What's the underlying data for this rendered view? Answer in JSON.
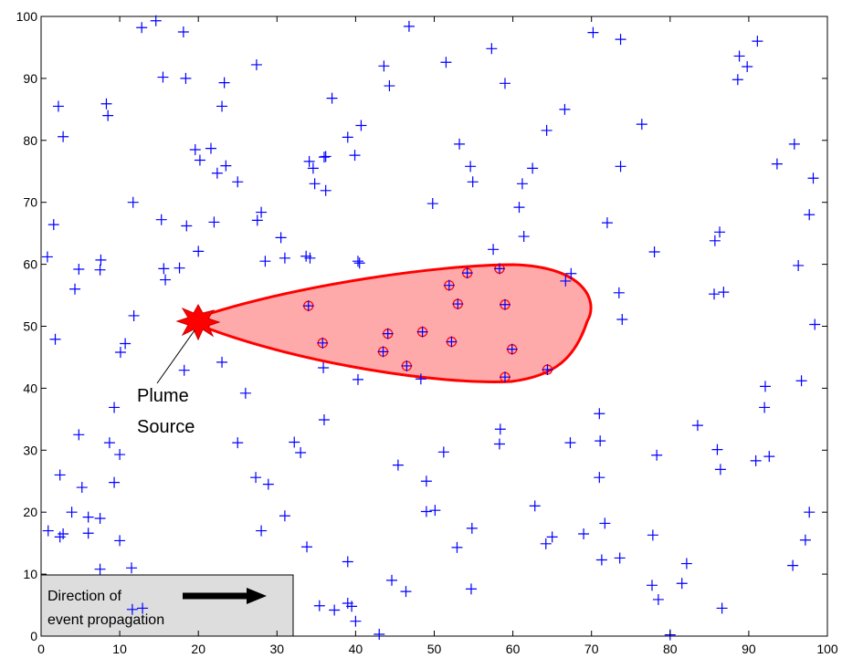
{
  "chart_data": {
    "type": "scatter",
    "xlim": [
      0,
      100
    ],
    "ylim": [
      0,
      100
    ],
    "xticks": [
      0,
      10,
      20,
      30,
      40,
      50,
      60,
      70,
      80,
      90,
      100
    ],
    "yticks": [
      0,
      10,
      20,
      30,
      40,
      50,
      60,
      70,
      80,
      90,
      100
    ],
    "annotations": {
      "plume_source": [
        "Plume",
        "Source"
      ],
      "propagation": [
        "Direction of",
        "event propagation"
      ]
    },
    "series": [
      {
        "color": "#0000ff",
        "marker": "plus",
        "x": [
          12.8,
          14.6,
          18.1,
          15.5,
          18.4,
          27.4,
          23.3,
          23.0,
          2.2,
          8.3,
          8.5,
          2.8,
          19.6,
          20.2,
          21.6,
          22.4,
          23.5,
          25.0,
          11.7,
          1.6,
          15.3,
          18.5,
          22.0,
          27.5,
          28.0,
          0.8,
          4.8,
          7.6,
          7.5,
          4.3,
          15.6,
          15.8,
          17.6,
          20.0,
          28.5,
          30.5,
          31.0,
          33.7,
          34.2,
          40.3,
          40.5,
          11.8,
          1.8,
          10.7,
          10.1,
          18.2,
          23.0,
          9.3,
          26.0,
          10.0,
          8.7,
          4.8,
          2.4,
          5.2,
          25.0,
          27.3,
          28.9,
          3.9,
          6.0,
          7.5,
          9.3,
          0.9,
          2.4,
          2.8,
          6.0,
          10.0,
          7.5,
          11.5,
          11.6,
          12.9,
          28.0,
          31.0,
          32.2,
          33.0,
          33.8,
          35.4,
          37.3,
          39.0,
          39.5,
          40.0,
          39.0,
          43.0,
          44.6,
          46.4,
          45.4,
          49.0,
          49.0,
          50.1,
          51.2,
          52.9,
          54.8,
          54.7,
          36.0,
          35.9,
          40.3,
          48.3,
          58.4,
          58.3,
          62.8,
          64.2,
          65.0,
          67.3,
          69.0,
          71.0,
          71.1,
          71.0,
          71.7,
          71.3,
          73.6,
          77.8,
          77.7,
          78.5,
          80.0,
          81.5,
          82.1,
          78.3,
          83.5,
          86.0,
          86.4,
          86.6,
          90.9,
          92.0,
          92.1,
          92.6,
          95.6,
          97.2,
          97.7,
          96.7,
          96.3,
          98.4,
          97.7,
          98.2,
          95.8,
          93.6,
          88.8,
          89.8,
          91.1,
          88.6,
          85.7,
          86.3,
          85.6,
          86.8,
          78.0,
          73.5,
          73.9,
          73.7,
          72.0,
          76.4,
          73.7,
          70.2,
          66.6,
          67.4,
          66.7,
          64.3,
          62.5,
          61.2,
          60.8,
          61.4,
          57.5,
          59.0,
          57.3,
          53.2,
          54.6,
          54.9,
          51.5,
          49.8,
          46.8,
          44.3,
          43.6,
          40.7,
          39.9,
          39.0,
          37.0,
          36.0,
          36.2,
          36.2,
          34.1,
          34.6,
          34.8
        ],
        "y": [
          98.2,
          99.3,
          97.5,
          90.2,
          90.0,
          92.2,
          89.3,
          85.5,
          85.5,
          85.9,
          84.0,
          80.6,
          78.5,
          76.8,
          78.7,
          74.7,
          75.9,
          73.3,
          70.0,
          66.4,
          67.2,
          66.2,
          66.8,
          67.1,
          68.4,
          61.2,
          59.2,
          60.7,
          59.1,
          56.0,
          59.3,
          57.5,
          59.4,
          62.1,
          60.5,
          64.3,
          61.0,
          61.3,
          61.0,
          60.5,
          60.2,
          51.7,
          47.9,
          47.2,
          45.8,
          42.9,
          44.2,
          36.9,
          39.2,
          29.3,
          31.2,
          32.5,
          26.0,
          24.0,
          31.2,
          25.6,
          24.5,
          20.0,
          19.2,
          19.0,
          24.8,
          17.0,
          16.0,
          16.5,
          16.6,
          15.4,
          10.8,
          11.0,
          4.3,
          4.5,
          17.0,
          19.4,
          31.3,
          29.6,
          14.4,
          4.9,
          4.2,
          5.3,
          4.8,
          2.4,
          12.0,
          0.3,
          9.0,
          7.2,
          27.6,
          25.0,
          20.1,
          20.3,
          29.7,
          14.3,
          17.4,
          7.6,
          34.9,
          43.3,
          41.4,
          41.5,
          33.4,
          31.0,
          21.0,
          14.9,
          16.0,
          31.2,
          16.5,
          35.9,
          31.5,
          25.6,
          18.2,
          12.3,
          12.6,
          16.3,
          8.2,
          5.9,
          0.2,
          8.5,
          11.7,
          29.2,
          34.0,
          30.1,
          26.9,
          4.5,
          28.3,
          36.9,
          40.3,
          29.0,
          11.4,
          15.5,
          20.0,
          41.2,
          59.8,
          50.3,
          68.0,
          73.9,
          79.4,
          76.2,
          93.6,
          91.9,
          96.0,
          89.8,
          63.8,
          65.2,
          55.2,
          55.5,
          62.0,
          55.4,
          51.1,
          75.8,
          66.7,
          82.6,
          96.3,
          97.4,
          85.0,
          58.5,
          57.3,
          81.6,
          75.5,
          73.0,
          69.2,
          64.5,
          62.4,
          89.2,
          94.8,
          79.4,
          75.8,
          73.3,
          92.6,
          69.8,
          98.4,
          88.8,
          92.0,
          82.4,
          77.6,
          80.5,
          86.8,
          77.3,
          77.4,
          71.9,
          76.6,
          75.5,
          73.0
        ]
      },
      {
        "color": "#ff0000",
        "marker": "circle-plus",
        "x": [
          34.0,
          35.8,
          43.5,
          44.1,
          46.5,
          48.5,
          51.9,
          52.2,
          53.0,
          54.2,
          58.3,
          59.0,
          59.0,
          59.9,
          64.4
        ],
        "y": [
          53.3,
          47.3,
          45.9,
          48.8,
          43.6,
          49.1,
          56.6,
          47.5,
          53.6,
          58.6,
          59.3,
          53.5,
          41.8,
          46.3,
          43.0
        ]
      }
    ]
  }
}
